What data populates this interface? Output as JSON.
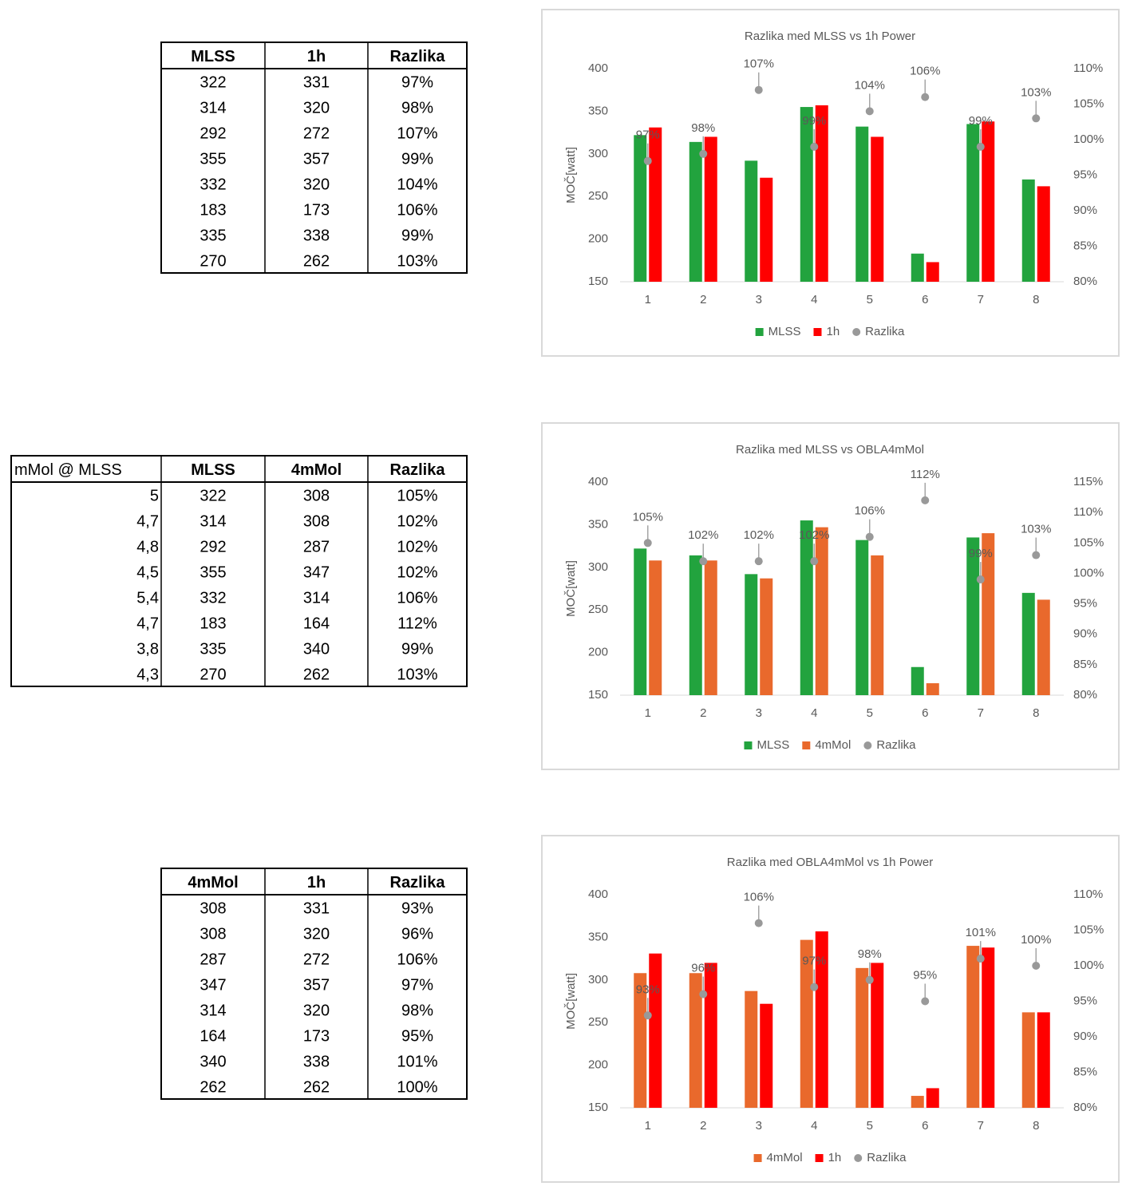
{
  "tables": [
    {
      "header": [
        "MLSS",
        "1h",
        "Razlika"
      ],
      "rows": [
        [
          322,
          331,
          "97%"
        ],
        [
          314,
          320,
          "98%"
        ],
        [
          292,
          272,
          "107%"
        ],
        [
          355,
          357,
          "99%"
        ],
        [
          332,
          320,
          "104%"
        ],
        [
          183,
          173,
          "106%"
        ],
        [
          335,
          338,
          "99%"
        ],
        [
          270,
          262,
          "103%"
        ]
      ]
    },
    {
      "header": [
        "mMol @ MLSS",
        "MLSS",
        "4mMol",
        "Razlika"
      ],
      "rows": [
        [
          "5",
          322,
          308,
          "105%"
        ],
        [
          "4,7",
          314,
          308,
          "102%"
        ],
        [
          "4,8",
          292,
          287,
          "102%"
        ],
        [
          "4,5",
          355,
          347,
          "102%"
        ],
        [
          "5,4",
          332,
          314,
          "106%"
        ],
        [
          "4,7",
          183,
          164,
          "112%"
        ],
        [
          "3,8",
          335,
          340,
          "99%"
        ],
        [
          "4,3",
          270,
          262,
          "103%"
        ]
      ]
    },
    {
      "header": [
        "4mMol",
        "1h",
        "Razlika"
      ],
      "rows": [
        [
          308,
          331,
          "93%"
        ],
        [
          308,
          320,
          "96%"
        ],
        [
          287,
          272,
          "106%"
        ],
        [
          347,
          357,
          "97%"
        ],
        [
          314,
          320,
          "98%"
        ],
        [
          164,
          173,
          "95%"
        ],
        [
          340,
          338,
          "101%"
        ],
        [
          262,
          262,
          "100%"
        ]
      ]
    }
  ],
  "chart_data": [
    {
      "type": "bar",
      "title": "Razlika med MLSS vs 1h Power",
      "y_label": "MOČ[watt]",
      "categories": [
        "1",
        "2",
        "3",
        "4",
        "5",
        "6",
        "7",
        "8"
      ],
      "series": [
        {
          "name": "MLSS",
          "color": "#22a33e",
          "values": [
            322,
            314,
            292,
            355,
            332,
            183,
            335,
            270
          ]
        },
        {
          "name": "1h",
          "color": "#ff0000",
          "values": [
            331,
            320,
            272,
            357,
            320,
            173,
            338,
            262
          ]
        },
        {
          "name": "Razlika",
          "type": "scatter",
          "axis": "y2",
          "color": "#999999",
          "values": [
            97,
            98,
            107,
            99,
            104,
            106,
            99,
            103
          ],
          "value_labels": [
            "97%",
            "98%",
            "107%",
            "99%",
            "104%",
            "106%",
            "99%",
            "103%"
          ]
        }
      ],
      "ylim": [
        150,
        400
      ],
      "yticks": [
        150,
        200,
        250,
        300,
        350,
        400
      ],
      "y2lim": [
        80,
        110
      ],
      "y2ticks": [
        {
          "value": 80,
          "label": "80%"
        },
        {
          "value": 85,
          "label": "85%"
        },
        {
          "value": 90,
          "label": "90%"
        },
        {
          "value": 95,
          "label": "95%"
        },
        {
          "value": 100,
          "label": "100%"
        },
        {
          "value": 105,
          "label": "105%"
        },
        {
          "value": 110,
          "label": "110%"
        }
      ],
      "legend": "bottom"
    },
    {
      "type": "bar",
      "title": "Razlika med MLSS vs OBLA4mMol",
      "y_label": "MOČ[watt]",
      "categories": [
        "1",
        "2",
        "3",
        "4",
        "5",
        "6",
        "7",
        "8"
      ],
      "series": [
        {
          "name": "MLSS",
          "color": "#22a33e",
          "values": [
            322,
            314,
            292,
            355,
            332,
            183,
            335,
            270
          ]
        },
        {
          "name": "4mMol",
          "color": "#e9692c",
          "values": [
            308,
            308,
            287,
            347,
            314,
            164,
            340,
            262
          ]
        },
        {
          "name": "Razlika",
          "type": "scatter",
          "axis": "y2",
          "color": "#999999",
          "values": [
            105,
            102,
            102,
            102,
            106,
            112,
            99,
            103
          ],
          "value_labels": [
            "105%",
            "102%",
            "102%",
            "102%",
            "106%",
            "112%",
            "99%",
            "103%"
          ]
        }
      ],
      "ylim": [
        150,
        400
      ],
      "yticks": [
        150,
        200,
        250,
        300,
        350,
        400
      ],
      "y2lim": [
        80,
        115
      ],
      "y2ticks": [
        {
          "value": 80,
          "label": "80%"
        },
        {
          "value": 85,
          "label": "85%"
        },
        {
          "value": 90,
          "label": "90%"
        },
        {
          "value": 95,
          "label": "95%"
        },
        {
          "value": 100,
          "label": "100%"
        },
        {
          "value": 105,
          "label": "105%"
        },
        {
          "value": 110,
          "label": "110%"
        },
        {
          "value": 115,
          "label": "115%"
        }
      ],
      "legend": "bottom"
    },
    {
      "type": "bar",
      "title": "Razlika med OBLA4mMol vs 1h Power",
      "y_label": "MOČ[watt]",
      "categories": [
        "1",
        "2",
        "3",
        "4",
        "5",
        "6",
        "7",
        "8"
      ],
      "series": [
        {
          "name": "4mMol",
          "color": "#e9692c",
          "values": [
            308,
            308,
            287,
            347,
            314,
            164,
            340,
            262
          ]
        },
        {
          "name": "1h",
          "color": "#ff0000",
          "values": [
            331,
            320,
            272,
            357,
            320,
            173,
            338,
            262
          ]
        },
        {
          "name": "Razlika",
          "type": "scatter",
          "axis": "y2",
          "color": "#999999",
          "values": [
            93,
            96,
            106,
            97,
            98,
            95,
            101,
            100
          ],
          "value_labels": [
            "93%",
            "96%",
            "106%",
            "97%",
            "98%",
            "95%",
            "101%",
            "100%"
          ]
        }
      ],
      "ylim": [
        150,
        400
      ],
      "yticks": [
        150,
        200,
        250,
        300,
        350,
        400
      ],
      "y2lim": [
        80,
        110
      ],
      "y2ticks": [
        {
          "value": 80,
          "label": "80%"
        },
        {
          "value": 85,
          "label": "85%"
        },
        {
          "value": 90,
          "label": "90%"
        },
        {
          "value": 95,
          "label": "95%"
        },
        {
          "value": 100,
          "label": "100%"
        },
        {
          "value": 105,
          "label": "105%"
        },
        {
          "value": 110,
          "label": "110%"
        }
      ],
      "legend": "bottom"
    }
  ]
}
